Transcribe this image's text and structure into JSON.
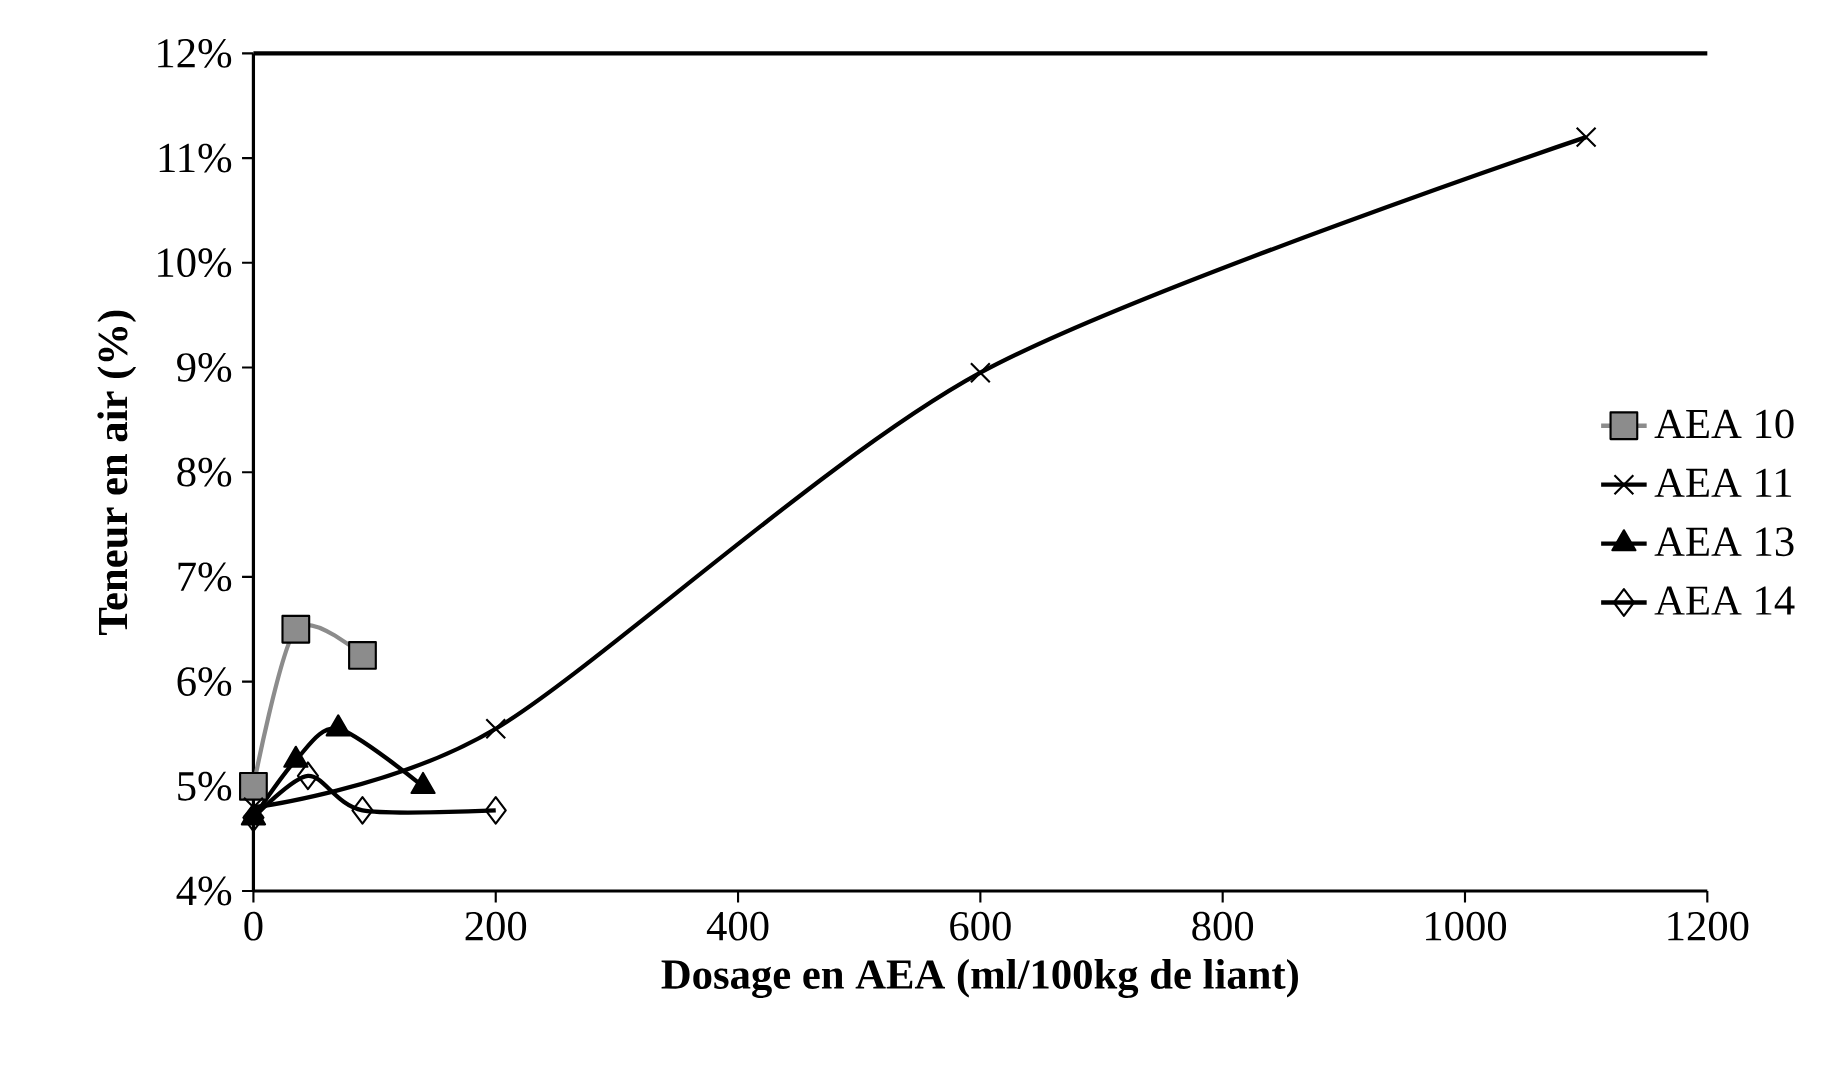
{
  "chart_data": {
    "type": "line",
    "xlabel": "Dosage en AEA (ml/100kg de liant)",
    "ylabel": "Teneur en air (%)",
    "xlim": [
      0,
      1200
    ],
    "xticks": [
      0,
      200,
      400,
      600,
      800,
      1000,
      1200
    ],
    "ylim": [
      4,
      12
    ],
    "yticks": [
      {
        "value": 4,
        "label": "4%"
      },
      {
        "value": 5,
        "label": "5%"
      },
      {
        "value": 6,
        "label": "6%"
      },
      {
        "value": 7,
        "label": "7%"
      },
      {
        "value": 8,
        "label": "8%"
      },
      {
        "value": 9,
        "label": "9%"
      },
      {
        "value": 10,
        "label": "10%"
      },
      {
        "value": 11,
        "label": "11%"
      },
      {
        "value": 12,
        "label": "12%"
      }
    ],
    "series": [
      {
        "name": "AEA 10",
        "color": "#8c8c8c",
        "marker": "square",
        "x": [
          0,
          35,
          90
        ],
        "values": [
          5.0,
          6.5,
          6.25
        ]
      },
      {
        "name": "AEA 11",
        "color": "#000000",
        "marker": "cross",
        "x": [
          0,
          200,
          600,
          1100
        ],
        "values": [
          4.8,
          5.55,
          8.95,
          11.2
        ]
      },
      {
        "name": "AEA 13",
        "color": "#000000",
        "marker": "triangle",
        "x": [
          0,
          35,
          70,
          140
        ],
        "values": [
          4.7,
          5.25,
          5.55,
          5.0
        ]
      },
      {
        "name": "AEA 14",
        "color": "#000000",
        "marker": "diamond",
        "x": [
          0,
          45,
          90,
          200
        ],
        "values": [
          4.7,
          5.1,
          4.77,
          4.77
        ]
      }
    ],
    "ref_lines": [
      {
        "axis": "y",
        "value": 12,
        "color": "#000000"
      }
    ],
    "grid": false,
    "legend": "right"
  }
}
